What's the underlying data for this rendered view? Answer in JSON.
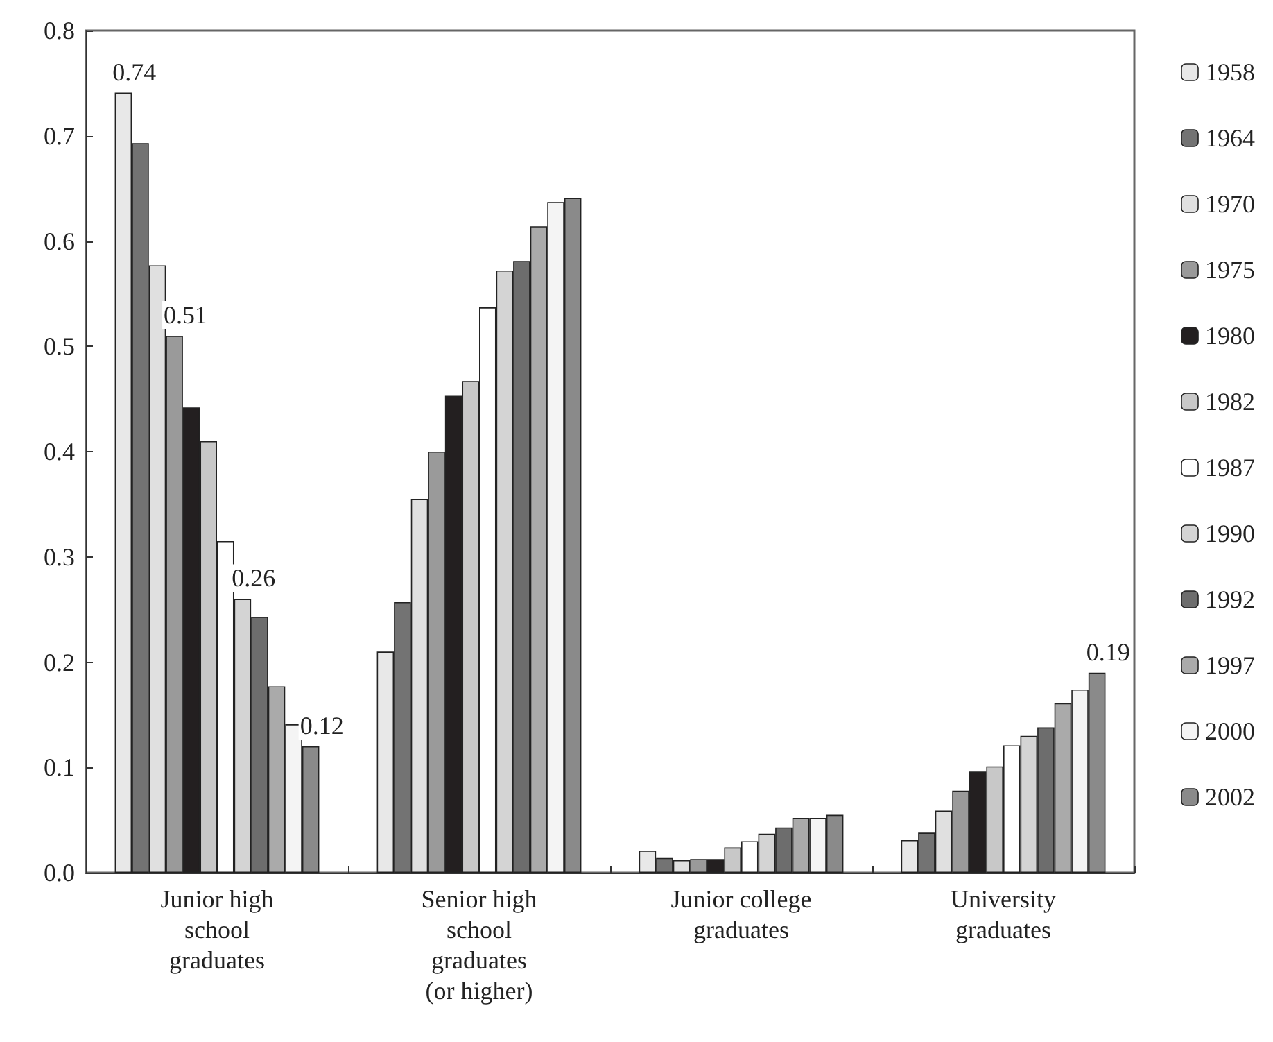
{
  "chart_data": {
    "type": "bar",
    "categories": [
      "Junior high\nschool\ngraduates",
      "Senior high\nschool\ngraduates\n(or higher)",
      "Junior college\ngraduates",
      "University\ngraduates"
    ],
    "series": [
      {
        "name": "1958",
        "color": "#e8e8e8",
        "values": [
          0.741,
          0.21,
          0.021,
          0.031
        ],
        "value_labels": [
          "0.74",
          null,
          null,
          null
        ]
      },
      {
        "name": "1964",
        "color": "#737373",
        "values": [
          0.693,
          0.257,
          0.014,
          0.038
        ],
        "value_labels": [
          null,
          null,
          null,
          null
        ]
      },
      {
        "name": "1970",
        "color": "#e0e0e0",
        "values": [
          0.577,
          0.355,
          0.012,
          0.059
        ],
        "value_labels": [
          null,
          null,
          null,
          null
        ]
      },
      {
        "name": "1975",
        "color": "#9a9a9a",
        "values": [
          0.51,
          0.4,
          0.013,
          0.078
        ],
        "value_labels": [
          "0.51",
          null,
          null,
          null
        ]
      },
      {
        "name": "1980",
        "color": "#231f20",
        "values": [
          0.442,
          0.453,
          0.013,
          0.096
        ],
        "value_labels": [
          null,
          null,
          null,
          null
        ]
      },
      {
        "name": "1982",
        "color": "#c8c8c8",
        "values": [
          0.41,
          0.467,
          0.024,
          0.101
        ],
        "value_labels": [
          null,
          null,
          null,
          null
        ]
      },
      {
        "name": "1987",
        "color": "#ffffff",
        "values": [
          0.315,
          0.537,
          0.03,
          0.121
        ],
        "value_labels": [
          null,
          null,
          null,
          null
        ]
      },
      {
        "name": "1990",
        "color": "#d4d4d4",
        "values": [
          0.26,
          0.572,
          0.037,
          0.13
        ],
        "value_labels": [
          "0.26",
          null,
          null,
          null
        ]
      },
      {
        "name": "1992",
        "color": "#6d6d6d",
        "values": [
          0.243,
          0.581,
          0.043,
          0.138
        ],
        "value_labels": [
          null,
          null,
          null,
          null
        ]
      },
      {
        "name": "1997",
        "color": "#aaaaaa",
        "values": [
          0.177,
          0.614,
          0.052,
          0.161
        ],
        "value_labels": [
          null,
          null,
          null,
          null
        ]
      },
      {
        "name": "2000",
        "color": "#f4f4f4",
        "values": [
          0.141,
          0.637,
          0.052,
          0.174
        ],
        "value_labels": [
          null,
          null,
          null,
          null
        ]
      },
      {
        "name": "2002",
        "color": "#8a8a8a",
        "values": [
          0.12,
          0.641,
          0.055,
          0.19
        ],
        "value_labels": [
          "0.12",
          null,
          null,
          "0.19"
        ]
      }
    ],
    "ylim": [
      0,
      0.8
    ],
    "yticks": [
      {
        "value": 0,
        "label": "0.0"
      },
      {
        "value": 0.1,
        "label": "0.1"
      },
      {
        "value": 0.2,
        "label": "0.2"
      },
      {
        "value": 0.3,
        "label": "0.3"
      },
      {
        "value": 0.4,
        "label": "0.4"
      },
      {
        "value": 0.5,
        "label": "0.5"
      },
      {
        "value": 0.6,
        "label": "0.6"
      },
      {
        "value": 0.7,
        "label": "0.7"
      },
      {
        "value": 0.8,
        "label": "0.8"
      }
    ],
    "grid": false,
    "legend": "right"
  }
}
